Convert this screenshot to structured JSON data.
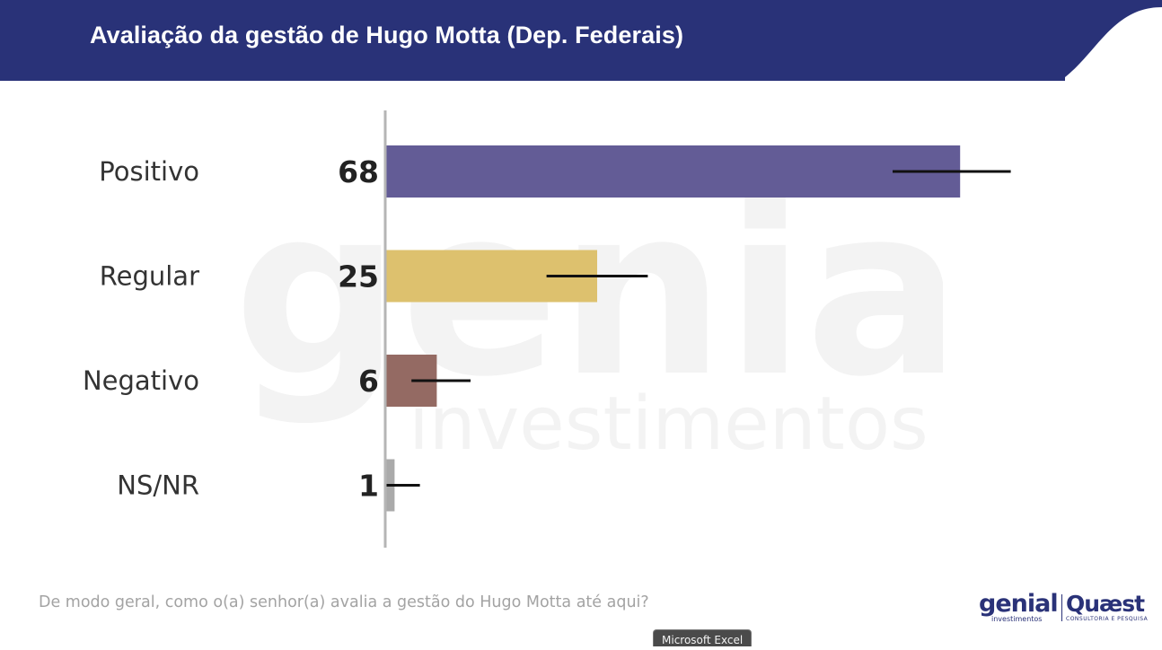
{
  "title": "Avaliação da gestão de Hugo Motta (Dep. Federais)",
  "question": "De modo geral, como o(a) senhor(a) avalia a gestão do Hugo Motta até aqui?",
  "watermark": {
    "brand": "genial",
    "sub": "investimentos"
  },
  "logos": {
    "genial": "genial",
    "genial_sub": "investimentos",
    "quaest": "Quæst",
    "quaest_sub": "CONSULTORIA E PESQUISA"
  },
  "tooltip": "Microsoft Excel",
  "colors": {
    "header": "#293278",
    "positivo": "#635c96",
    "regular": "#ddc16e",
    "negativo": "#946a63",
    "nsnr": "#aaaaaa",
    "axis": "#b5b5b5",
    "error_bar": "#111111"
  },
  "chart_data": {
    "type": "bar",
    "orientation": "horizontal",
    "title": "Avaliação da gestão de Hugo Motta (Dep. Federais)",
    "categories": [
      "Positivo",
      "Regular",
      "Negativo",
      "NS/NR"
    ],
    "values": [
      68,
      25,
      6,
      1
    ],
    "error_bars": [
      [
        60,
        74
      ],
      [
        19,
        31
      ],
      [
        3,
        10
      ],
      [
        0,
        4
      ]
    ],
    "xlim": [
      0,
      100
    ],
    "grid": false,
    "legend": "none"
  }
}
